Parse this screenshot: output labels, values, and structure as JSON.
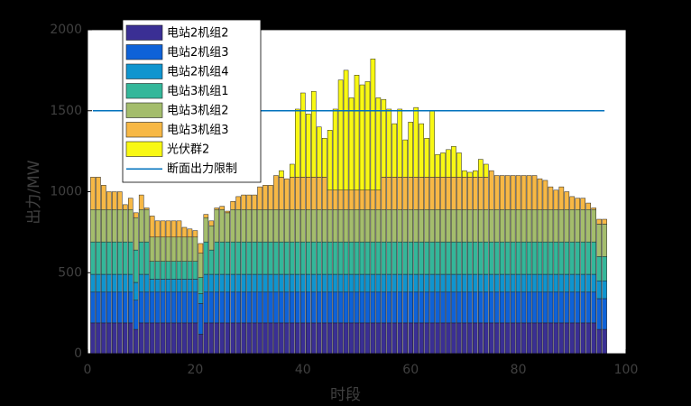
{
  "chart_data": {
    "type": "stacked_bar",
    "xlabel": "时段",
    "ylabel": "出力/MW",
    "x": [
      1,
      2,
      3,
      4,
      5,
      6,
      7,
      8,
      9,
      10,
      11,
      12,
      13,
      14,
      15,
      16,
      17,
      18,
      19,
      20,
      21,
      22,
      23,
      24,
      25,
      26,
      27,
      28,
      29,
      30,
      31,
      32,
      33,
      34,
      35,
      36,
      37,
      38,
      39,
      40,
      41,
      42,
      43,
      44,
      45,
      46,
      47,
      48,
      49,
      50,
      51,
      52,
      53,
      54,
      55,
      56,
      57,
      58,
      59,
      60,
      61,
      62,
      63,
      64,
      65,
      66,
      67,
      68,
      69,
      70,
      71,
      72,
      73,
      74,
      75,
      76,
      77,
      78,
      79,
      80,
      81,
      82,
      83,
      84,
      85,
      86,
      87,
      88,
      89,
      90,
      91,
      92,
      93,
      94,
      95,
      96
    ],
    "xlim": [
      0,
      100
    ],
    "xticks": [
      0,
      20,
      40,
      60,
      80,
      100
    ],
    "ylim": [
      0,
      2000
    ],
    "yticks": [
      0,
      500,
      1000,
      1500,
      2000
    ],
    "series": [
      {
        "name": "电站2机组2",
        "color": "#3a2f94",
        "values": [
          190,
          190,
          190,
          190,
          190,
          190,
          190,
          190,
          150,
          190,
          190,
          190,
          190,
          190,
          190,
          190,
          190,
          190,
          190,
          190,
          120,
          190,
          190,
          190,
          190,
          190,
          190,
          190,
          190,
          190,
          190,
          190,
          190,
          190,
          190,
          190,
          190,
          190,
          190,
          190,
          190,
          190,
          190,
          190,
          190,
          190,
          190,
          190,
          190,
          190,
          190,
          190,
          190,
          190,
          190,
          190,
          190,
          190,
          190,
          190,
          190,
          190,
          190,
          190,
          190,
          190,
          190,
          190,
          190,
          190,
          190,
          190,
          190,
          190,
          190,
          190,
          190,
          190,
          190,
          190,
          190,
          190,
          190,
          190,
          190,
          190,
          190,
          190,
          190,
          190,
          190,
          190,
          190,
          190,
          150,
          150
        ]
      },
      {
        "name": "电站2机组3",
        "color": "#0e62d8",
        "values": [
          190,
          190,
          190,
          190,
          190,
          190,
          190,
          190,
          180,
          190,
          190,
          190,
          190,
          190,
          190,
          190,
          190,
          190,
          190,
          190,
          190,
          190,
          190,
          190,
          190,
          190,
          190,
          190,
          190,
          190,
          190,
          190,
          190,
          190,
          190,
          190,
          190,
          190,
          190,
          190,
          190,
          190,
          190,
          190,
          190,
          190,
          190,
          190,
          190,
          190,
          190,
          190,
          190,
          190,
          190,
          190,
          190,
          190,
          190,
          190,
          190,
          190,
          190,
          190,
          190,
          190,
          190,
          190,
          190,
          190,
          190,
          190,
          190,
          190,
          190,
          190,
          190,
          190,
          190,
          190,
          190,
          190,
          190,
          190,
          190,
          190,
          190,
          190,
          190,
          190,
          190,
          190,
          190,
          190,
          190,
          190
        ]
      },
      {
        "name": "电站2机组4",
        "color": "#0f95cf",
        "values": [
          110,
          110,
          110,
          110,
          110,
          110,
          110,
          110,
          110,
          110,
          110,
          80,
          80,
          80,
          80,
          80,
          80,
          80,
          80,
          80,
          60,
          110,
          110,
          110,
          110,
          110,
          110,
          110,
          110,
          110,
          110,
          110,
          110,
          110,
          110,
          110,
          110,
          110,
          110,
          110,
          110,
          110,
          110,
          110,
          110,
          110,
          110,
          110,
          110,
          110,
          110,
          110,
          110,
          110,
          110,
          110,
          110,
          110,
          110,
          110,
          110,
          110,
          110,
          110,
          110,
          110,
          110,
          110,
          110,
          110,
          110,
          110,
          110,
          110,
          110,
          110,
          110,
          110,
          110,
          110,
          110,
          110,
          110,
          110,
          110,
          110,
          110,
          110,
          110,
          110,
          110,
          110,
          110,
          110,
          110,
          110
        ]
      },
      {
        "name": "电站3机组1",
        "color": "#33b79a",
        "values": [
          200,
          200,
          200,
          200,
          200,
          200,
          200,
          200,
          200,
          200,
          200,
          110,
          110,
          110,
          110,
          110,
          110,
          110,
          110,
          110,
          100,
          200,
          150,
          200,
          200,
          200,
          200,
          200,
          200,
          200,
          200,
          200,
          200,
          200,
          200,
          200,
          200,
          200,
          200,
          200,
          200,
          200,
          200,
          200,
          200,
          200,
          200,
          200,
          200,
          200,
          200,
          200,
          200,
          200,
          200,
          200,
          200,
          200,
          200,
          200,
          200,
          200,
          200,
          200,
          200,
          200,
          200,
          200,
          200,
          200,
          200,
          200,
          200,
          200,
          200,
          200,
          200,
          200,
          200,
          200,
          200,
          200,
          200,
          200,
          200,
          200,
          200,
          200,
          200,
          200,
          200,
          200,
          200,
          200,
          150,
          150
        ]
      },
      {
        "name": "电站3机组2",
        "color": "#a4bd6c",
        "values": [
          200,
          200,
          200,
          200,
          200,
          200,
          200,
          200,
          200,
          200,
          200,
          150,
          150,
          150,
          150,
          150,
          150,
          150,
          150,
          150,
          150,
          150,
          150,
          200,
          200,
          180,
          200,
          200,
          200,
          200,
          200,
          200,
          200,
          200,
          200,
          200,
          200,
          200,
          200,
          200,
          200,
          200,
          200,
          200,
          200,
          200,
          200,
          200,
          200,
          200,
          200,
          200,
          200,
          200,
          200,
          200,
          200,
          200,
          200,
          200,
          200,
          200,
          200,
          200,
          200,
          200,
          200,
          200,
          200,
          200,
          200,
          200,
          200,
          200,
          200,
          200,
          200,
          200,
          200,
          200,
          200,
          200,
          200,
          200,
          200,
          200,
          200,
          200,
          200,
          200,
          200,
          200,
          200,
          200,
          200,
          200
        ]
      },
      {
        "name": "电站3机组3",
        "color": "#f7b845",
        "values": [
          200,
          200,
          150,
          110,
          110,
          110,
          30,
          70,
          30,
          90,
          10,
          130,
          100,
          100,
          100,
          100,
          100,
          60,
          50,
          40,
          60,
          20,
          30,
          10,
          20,
          10,
          50,
          80,
          90,
          90,
          90,
          140,
          150,
          150,
          210,
          200,
          190,
          200,
          200,
          200,
          200,
          200,
          200,
          200,
          120,
          120,
          120,
          120,
          120,
          120,
          120,
          120,
          120,
          120,
          200,
          200,
          200,
          200,
          200,
          200,
          200,
          200,
          200,
          200,
          200,
          200,
          200,
          200,
          200,
          200,
          200,
          200,
          200,
          200,
          240,
          210,
          210,
          210,
          210,
          210,
          210,
          210,
          210,
          190,
          180,
          140,
          120,
          140,
          110,
          80,
          70,
          70,
          40,
          10,
          30,
          30
        ]
      },
      {
        "name": "光伏群2",
        "color": "#f8f813",
        "values": [
          0,
          0,
          0,
          0,
          0,
          0,
          0,
          0,
          0,
          0,
          0,
          0,
          0,
          0,
          0,
          0,
          0,
          0,
          0,
          0,
          0,
          0,
          0,
          0,
          0,
          0,
          0,
          0,
          0,
          0,
          0,
          0,
          0,
          0,
          0,
          40,
          0,
          80,
          420,
          520,
          390,
          530,
          310,
          240,
          370,
          500,
          680,
          740,
          570,
          710,
          650,
          670,
          810,
          570,
          480,
          420,
          330,
          420,
          230,
          340,
          430,
          330,
          240,
          410,
          140,
          150,
          170,
          190,
          150,
          40,
          30,
          40,
          110,
          80,
          0,
          0,
          0,
          0,
          0,
          0,
          0,
          0,
          0,
          0,
          0,
          0,
          0,
          0,
          0,
          0,
          0,
          0,
          0,
          0,
          0,
          0
        ]
      }
    ],
    "limit_line": {
      "name": "断面出力限制",
      "value": 1500,
      "color": "#0072bd"
    }
  }
}
